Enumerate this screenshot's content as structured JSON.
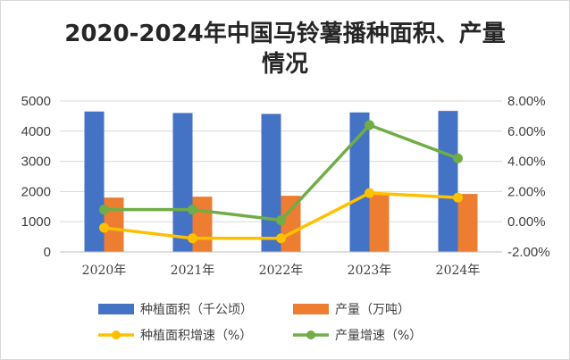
{
  "chart_data": {
    "type": "bar",
    "title_line1": "2020-2024年中国马铃薯播种面积、产量",
    "title_line2": "情况",
    "categories": [
      "2020年",
      "2021年",
      "2022年",
      "2023年",
      "2024年"
    ],
    "left_axis": {
      "min": 0,
      "max": 5000,
      "ticks": [
        "0",
        "1000",
        "2000",
        "3000",
        "4000",
        "5000"
      ]
    },
    "right_axis": {
      "min": -2,
      "max": 8,
      "ticks": [
        "-2.00%",
        "0.00%",
        "2.00%",
        "4.00%",
        "6.00%",
        "8.00%"
      ]
    },
    "grid": true,
    "legend_position": "bottom",
    "series": [
      {
        "name": "种植面积（千公顷）",
        "type": "bar",
        "axis": "left",
        "color": "#4472C4",
        "values": [
          4650,
          4600,
          4570,
          4620,
          4670
        ]
      },
      {
        "name": "产量（万吨）",
        "type": "bar",
        "axis": "left",
        "color": "#ED7D31",
        "values": [
          1800,
          1830,
          1860,
          1920,
          1920
        ]
      },
      {
        "name": "种植面积增速（%）",
        "type": "line",
        "axis": "right",
        "color": "#FFC000",
        "values": [
          -0.4,
          -1.1,
          -1.1,
          1.9,
          1.6
        ]
      },
      {
        "name": "产量增速（%）",
        "type": "line",
        "axis": "right",
        "color": "#70AD47",
        "values": [
          0.8,
          0.8,
          0.1,
          6.4,
          4.2
        ]
      }
    ]
  }
}
